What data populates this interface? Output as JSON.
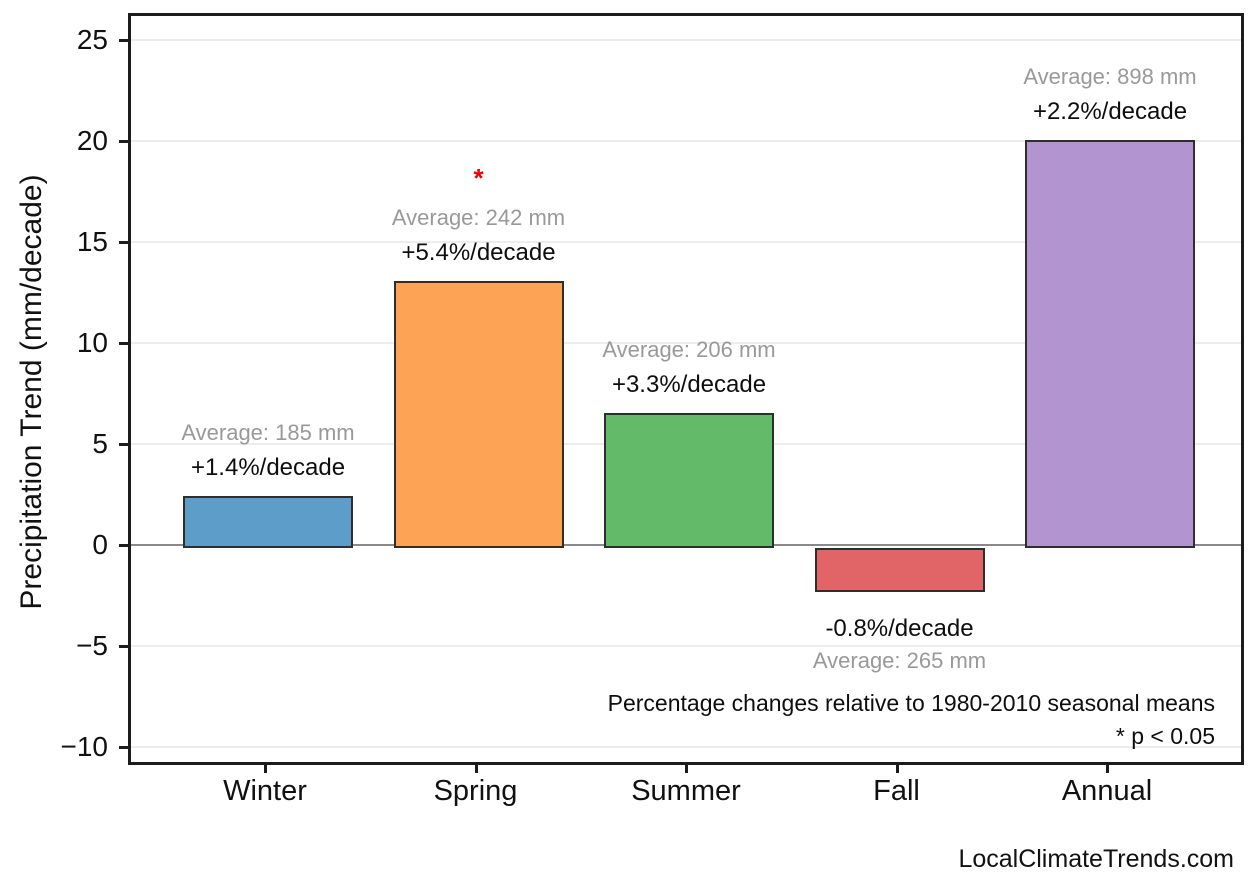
{
  "watermark": "LocalClimateTrends.com",
  "chart_data": {
    "type": "bar",
    "title": "",
    "xlabel": "",
    "ylabel": "Precipitation Trend (mm/decade)",
    "categories": [
      "Winter",
      "Spring",
      "Summer",
      "Fall",
      "Annual"
    ],
    "values": [
      2.6,
      13.2,
      6.7,
      -2.2,
      20.2
    ],
    "bar_colors": [
      "#5C9DC9",
      "#FDA356",
      "#63BA68",
      "#E16566",
      "#B294D0"
    ],
    "bar_edge_color": "#2e2e2e",
    "averages_mm": [
      185,
      242,
      206,
      265,
      898
    ],
    "avg_labels": [
      "Average: 185 mm",
      "Average: 242 mm",
      "Average: 206 mm",
      "Average: 265 mm",
      "Average: 898 mm"
    ],
    "pct_labels": [
      "+1.4%/decade",
      "+5.4%/decade",
      "+3.3%/decade",
      "-0.8%/decade",
      "+2.2%/decade"
    ],
    "significant": [
      false,
      true,
      false,
      false,
      false
    ],
    "significance_marker": "*",
    "significance_color": "#ee0000",
    "avg_label_color": "#999999",
    "ylim": [
      -10.9,
      26.3
    ],
    "yticks": [
      25,
      20,
      15,
      10,
      5,
      0,
      -5,
      -10
    ],
    "ytick_labels": [
      "25",
      "20",
      "15",
      "10",
      "5",
      "0",
      "−5",
      "−10"
    ],
    "grid": true,
    "legend": "none",
    "notes": [
      "Percentage changes relative to 1980-2010 seasonal means",
      "* p < 0.05"
    ]
  }
}
